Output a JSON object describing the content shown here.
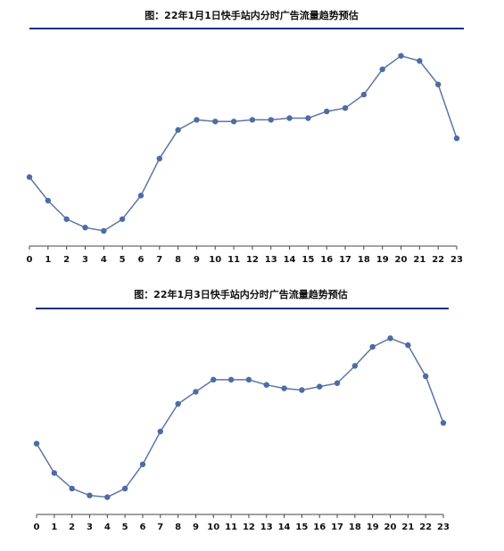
{
  "colors": {
    "line": "#5a76a8",
    "point": "#4e6ba3",
    "rule": "#1f2f7a",
    "axis": "#444444"
  },
  "chart_data": [
    {
      "type": "line",
      "title": "图：22年1月1日快手站内分时广告流量趋势预估",
      "categories": [
        "0",
        "1",
        "2",
        "3",
        "4",
        "5",
        "6",
        "7",
        "8",
        "9",
        "10",
        "11",
        "12",
        "13",
        "14",
        "15",
        "16",
        "17",
        "18",
        "19",
        "20",
        "21",
        "22",
        "23"
      ],
      "series": [
        {
          "values": [
            41,
            27,
            16,
            11,
            9,
            16,
            30,
            52,
            69,
            75,
            74,
            74,
            75,
            75,
            76,
            76,
            80,
            82,
            90,
            105,
            113,
            110,
            96,
            64
          ]
        }
      ],
      "ylim": [
        0,
        125
      ],
      "grid": false
    },
    {
      "type": "line",
      "title": "图：22年1月3日快手站内分时广告流量趋势预估",
      "categories": [
        "0",
        "1",
        "2",
        "3",
        "4",
        "5",
        "6",
        "7",
        "8",
        "9",
        "10",
        "11",
        "12",
        "13",
        "14",
        "15",
        "16",
        "17",
        "18",
        "19",
        "20",
        "21",
        "22",
        "23"
      ],
      "series": [
        {
          "values": [
            41,
            24,
            15,
            11,
            10,
            15,
            29,
            48,
            64,
            71,
            78,
            78,
            78,
            75,
            73,
            72,
            74,
            76,
            86,
            97,
            102,
            98,
            80,
            53
          ]
        }
      ],
      "ylim": [
        0,
        112
      ],
      "grid": false
    }
  ]
}
